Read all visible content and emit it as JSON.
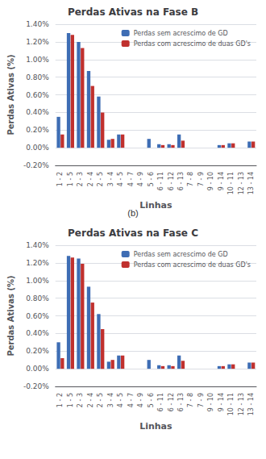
{
  "chart_data": [
    {
      "type": "bar",
      "title": "Perdas Ativas na Fase B",
      "xlabel": "Linhas",
      "ylabel": "Perdas Ativas (%)",
      "annotation": "(b)",
      "categories": [
        "1 - 2",
        "1 - 5",
        "2 - 3",
        "2 - 4",
        "2 - 5",
        "3 - 4",
        "4 - 5",
        "4 - 7",
        "4 - 9",
        "5 - 6",
        "6 - 11",
        "6 - 12",
        "6 - 13",
        "7 - 8",
        "7 - 9",
        "9 - 10",
        "9 - 14",
        "10 - 11",
        "12 - 13",
        "13 - 14"
      ],
      "series": [
        {
          "name": "Perdas sem acrescimo de GD",
          "color": "#3E6DB4",
          "values": [
            0.35,
            1.3,
            1.2,
            0.87,
            0.58,
            0.09,
            0.15,
            0.0,
            0.0,
            0.1,
            0.04,
            0.04,
            0.15,
            0.0,
            0.0,
            0.0,
            0.03,
            0.05,
            0.0,
            0.07
          ]
        },
        {
          "name": "Perdas com acrescimo de duas GD's",
          "color": "#C0312E",
          "values": [
            0.15,
            1.28,
            1.13,
            0.7,
            0.4,
            0.1,
            0.15,
            0.0,
            0.0,
            0.0,
            0.03,
            0.03,
            0.08,
            0.0,
            0.0,
            0.0,
            0.03,
            0.05,
            0.0,
            0.07
          ]
        }
      ],
      "ylim": [
        -0.2,
        1.4
      ],
      "yticks": [
        {
          "value": -0.2,
          "label": "-0.20%"
        },
        {
          "value": 0.0,
          "label": "0.00%"
        },
        {
          "value": 0.2,
          "label": "0.20%"
        },
        {
          "value": 0.4,
          "label": "0.40%"
        },
        {
          "value": 0.6,
          "label": "0.60%"
        },
        {
          "value": 0.8,
          "label": "0.80%"
        },
        {
          "value": 1.0,
          "label": "1.00%"
        },
        {
          "value": 1.2,
          "label": "1.20%"
        },
        {
          "value": 1.4,
          "label": "1.40%"
        }
      ],
      "grid": true,
      "legend": "upper right"
    },
    {
      "type": "bar",
      "title": "Perdas Ativas na Fase C",
      "xlabel": "Linhas",
      "ylabel": "Perdas Ativas (%)",
      "categories": [
        "1 - 2",
        "1 - 5",
        "2 - 3",
        "2 - 4",
        "2 - 5",
        "3 - 4",
        "4 - 5",
        "4 - 7",
        "4 - 9",
        "5 - 6",
        "6 - 11",
        "6 - 12",
        "6 - 13",
        "7 - 8",
        "7 - 9",
        "9 - 10",
        "9 - 14",
        "10 - 11",
        "12 - 13",
        "13 - 14"
      ],
      "series": [
        {
          "name": "Perdas sem acrescimo de GD",
          "color": "#3E6DB4",
          "values": [
            0.3,
            1.28,
            1.25,
            0.93,
            0.62,
            0.08,
            0.15,
            0.0,
            0.0,
            0.1,
            0.04,
            0.04,
            0.15,
            0.0,
            0.0,
            0.0,
            0.03,
            0.05,
            0.0,
            0.07
          ]
        },
        {
          "name": "Perdas com acrescimo de duas GD's",
          "color": "#C0312E",
          "values": [
            0.12,
            1.26,
            1.19,
            0.75,
            0.45,
            0.1,
            0.15,
            0.0,
            0.0,
            0.0,
            0.03,
            0.03,
            0.09,
            0.0,
            0.0,
            0.0,
            0.03,
            0.05,
            0.0,
            0.07
          ]
        }
      ],
      "ylim": [
        -0.2,
        1.4
      ],
      "yticks": [
        {
          "value": -0.2,
          "label": "-0.20%"
        },
        {
          "value": 0.0,
          "label": "0.00%"
        },
        {
          "value": 0.2,
          "label": "0.20%"
        },
        {
          "value": 0.4,
          "label": "0.40%"
        },
        {
          "value": 0.6,
          "label": "0.60%"
        },
        {
          "value": 0.8,
          "label": "0.80%"
        },
        {
          "value": 1.0,
          "label": "1.00%"
        },
        {
          "value": 1.2,
          "label": "1.20%"
        },
        {
          "value": 1.4,
          "label": "1.40%"
        }
      ],
      "grid": true,
      "legend": "upper right"
    }
  ]
}
